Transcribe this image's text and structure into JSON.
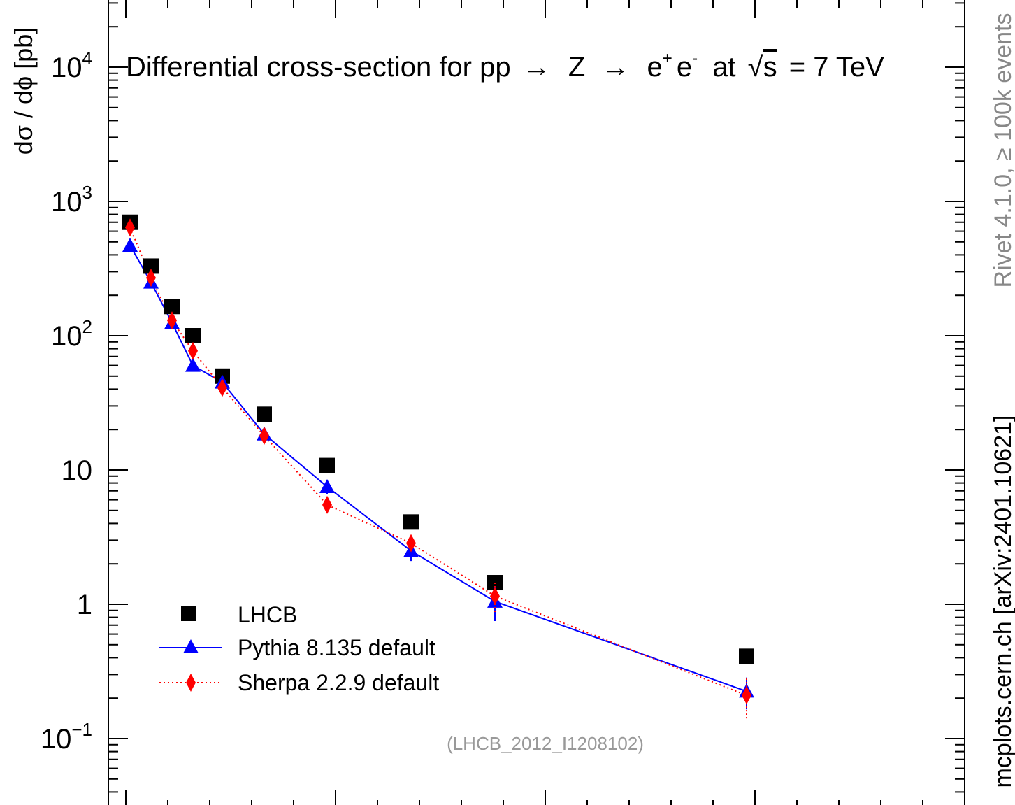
{
  "chart_data": {
    "type": "scatter",
    "title": "Differential cross-section for pp → Z → e⁺ e⁻ at √s = 7 TeV",
    "title_parts": {
      "pre": "Differential cross-section for pp",
      "arrow1": "→",
      "z": "Z",
      "arrow2": "→",
      "e1": "e",
      "plus": "+",
      "e2": "e",
      "minus": "-",
      "post": "at",
      "sqrt": "√",
      "s": "s",
      "energy": "= 7 TeV"
    },
    "ylabel": "dσ / dϕ  [pb]",
    "xlabel": "",
    "yscale": "log",
    "ylim": [
      0.04,
      25000
    ],
    "xlim": [
      0.0,
      2.0
    ],
    "y_ticks": [
      {
        "value": 10000,
        "base": "10",
        "exp": "4"
      },
      {
        "value": 1000,
        "base": "10",
        "exp": "3"
      },
      {
        "value": 100,
        "base": "10",
        "exp": "2"
      },
      {
        "value": 10,
        "base": "10",
        "exp": ""
      },
      {
        "value": 1,
        "base": "1",
        "exp": ""
      },
      {
        "value": 0.1,
        "base": "10",
        "exp": "−1"
      }
    ],
    "side_labels": {
      "rivet": "Rivet 4.1.0, ≥ 100k events",
      "mcplots": "mcplots.cern.ch [arXiv:2401.10621]"
    },
    "analysis_id": "(LHCB_2012_I1208102)",
    "legend_position": "bottom-left",
    "series": [
      {
        "name": "LHCB",
        "color": "#000000",
        "marker": "square",
        "x": [
          0.01,
          0.06,
          0.11,
          0.16,
          0.23,
          0.33,
          0.48,
          0.68,
          0.88,
          1.48
        ],
        "y": [
          700,
          330,
          165,
          100,
          50,
          26,
          10.8,
          4.1,
          1.45,
          0.41
        ]
      },
      {
        "name": "Pythia 8.135 default",
        "color": "#0000ff",
        "marker": "triangle",
        "line": "solid",
        "x": [
          0.01,
          0.06,
          0.11,
          0.16,
          0.23,
          0.33,
          0.48,
          0.68,
          0.88,
          1.48
        ],
        "y": [
          470,
          250,
          125,
          60,
          45,
          18.5,
          7.5,
          2.5,
          1.05,
          0.225
        ],
        "err": [
          0,
          0,
          0,
          0,
          0,
          0,
          0.9,
          0.4,
          0.3,
          0.06
        ]
      },
      {
        "name": "Sherpa 2.2.9 default",
        "color": "#ff0000",
        "marker": "diamond",
        "line": "dotted",
        "x": [
          0.01,
          0.06,
          0.11,
          0.16,
          0.23,
          0.33,
          0.48,
          0.68,
          0.88,
          1.48
        ],
        "y": [
          640,
          270,
          130,
          77,
          41,
          18,
          5.5,
          2.85,
          1.15,
          0.21
        ],
        "err": [
          0,
          0,
          0,
          0,
          0,
          0,
          0.6,
          0.4,
          0.3,
          0.07
        ]
      }
    ]
  }
}
